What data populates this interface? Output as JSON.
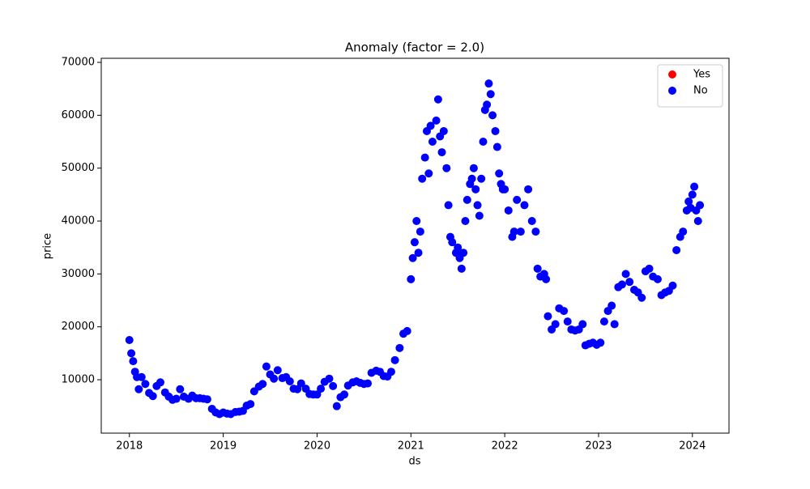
{
  "chart_data": {
    "type": "scatter",
    "title": "Anomaly (factor = 2.0)",
    "x_label": "ds",
    "y_label": "price",
    "xlim": [
      2017.7,
      2024.39
    ],
    "xticks": [
      2018,
      2019,
      2020,
      2021,
      2022,
      2023,
      2024
    ],
    "ylim": [
      -100,
      70770
    ],
    "yticks": [
      10000,
      20000,
      30000,
      40000,
      50000,
      60000,
      70000
    ],
    "legend": "upper right",
    "series": [
      {
        "name": "Yes",
        "color": "red",
        "x": [],
        "values": []
      },
      {
        "name": "No",
        "color": "blue",
        "x": [
          2018.0,
          2018.02,
          2018.04,
          2018.06,
          2018.08,
          2018.1,
          2018.13,
          2018.17,
          2018.21,
          2018.25,
          2018.29,
          2018.33,
          2018.38,
          2018.42,
          2018.46,
          2018.5,
          2018.54,
          2018.58,
          2018.63,
          2018.67,
          2018.71,
          2018.75,
          2018.79,
          2018.83,
          2018.88,
          2018.92,
          2018.96,
          2019.0,
          2019.04,
          2019.08,
          2019.13,
          2019.17,
          2019.21,
          2019.25,
          2019.29,
          2019.33,
          2019.38,
          2019.42,
          2019.46,
          2019.5,
          2019.54,
          2019.58,
          2019.63,
          2019.67,
          2019.71,
          2019.75,
          2019.79,
          2019.83,
          2019.88,
          2019.92,
          2019.96,
          2020.0,
          2020.04,
          2020.08,
          2020.13,
          2020.17,
          2020.21,
          2020.25,
          2020.29,
          2020.33,
          2020.38,
          2020.42,
          2020.46,
          2020.5,
          2020.54,
          2020.58,
          2020.63,
          2020.67,
          2020.71,
          2020.75,
          2020.79,
          2020.83,
          2020.88,
          2020.92,
          2020.96,
          2021.0,
          2021.02,
          2021.04,
          2021.06,
          2021.08,
          2021.1,
          2021.12,
          2021.15,
          2021.17,
          2021.19,
          2021.21,
          2021.23,
          2021.27,
          2021.29,
          2021.31,
          2021.33,
          2021.35,
          2021.38,
          2021.4,
          2021.42,
          2021.44,
          2021.48,
          2021.5,
          2021.52,
          2021.54,
          2021.56,
          2021.58,
          2021.6,
          2021.63,
          2021.65,
          2021.67,
          2021.69,
          2021.71,
          2021.73,
          2021.75,
          2021.77,
          2021.79,
          2021.81,
          2021.83,
          2021.85,
          2021.87,
          2021.9,
          2021.92,
          2021.94,
          2021.96,
          2021.98,
          2022.0,
          2022.04,
          2022.08,
          2022.1,
          2022.13,
          2022.17,
          2022.21,
          2022.25,
          2022.29,
          2022.33,
          2022.35,
          2022.38,
          2022.42,
          2022.44,
          2022.46,
          2022.5,
          2022.54,
          2022.58,
          2022.63,
          2022.67,
          2022.71,
          2022.75,
          2022.79,
          2022.83,
          2022.86,
          2022.9,
          2022.94,
          2022.98,
          2023.02,
          2023.06,
          2023.1,
          2023.14,
          2023.17,
          2023.21,
          2023.25,
          2023.29,
          2023.33,
          2023.38,
          2023.42,
          2023.46,
          2023.5,
          2023.54,
          2023.58,
          2023.63,
          2023.67,
          2023.71,
          2023.75,
          2023.79,
          2023.83,
          2023.87,
          2023.9,
          2023.94,
          2023.96,
          2023.98,
          2024.0,
          2024.02,
          2024.04,
          2024.06,
          2024.08
        ],
        "values": [
          17500,
          15000,
          13500,
          11500,
          10500,
          8200,
          10500,
          9200,
          7500,
          6900,
          8800,
          9500,
          7600,
          6800,
          6200,
          6400,
          8200,
          6800,
          6400,
          7000,
          6500,
          6500,
          6400,
          6300,
          4500,
          3800,
          3500,
          3800,
          3600,
          3500,
          3900,
          3950,
          4100,
          5100,
          5400,
          7800,
          8700,
          9200,
          12500,
          11000,
          10200,
          11800,
          10300,
          10500,
          9700,
          8300,
          8200,
          9300,
          8300,
          7300,
          7200,
          7200,
          8300,
          9600,
          10200,
          8800,
          5000,
          6700,
          7200,
          8900,
          9500,
          9700,
          9400,
          9200,
          9300,
          11300,
          11700,
          11500,
          10700,
          10600,
          11500,
          13700,
          16000,
          18700,
          19200,
          29000,
          33000,
          36000,
          40000,
          34000,
          38000,
          48000,
          52000,
          57000,
          49000,
          58000,
          55000,
          59000,
          63000,
          56000,
          53000,
          57000,
          50000,
          43000,
          37000,
          36000,
          34000,
          35000,
          33000,
          31000,
          34000,
          40000,
          44000,
          47000,
          48000,
          50000,
          46000,
          43000,
          41000,
          48000,
          55000,
          61000,
          62000,
          66000,
          64000,
          60000,
          57000,
          54000,
          49000,
          47000,
          46000,
          46000,
          42000,
          37000,
          38000,
          44000,
          38000,
          43000,
          46000,
          40000,
          38000,
          31000,
          29500,
          30000,
          29000,
          22000,
          19500,
          20500,
          23500,
          23000,
          21000,
          19500,
          19300,
          19500,
          20500,
          16500,
          16800,
          17000,
          16600,
          17000,
          21000,
          23000,
          24000,
          20500,
          27500,
          28000,
          30000,
          28500,
          27000,
          26500,
          25500,
          30500,
          31000,
          29500,
          29000,
          26000,
          26500,
          26800,
          27800,
          34500,
          37000,
          38000,
          42000,
          43700,
          42500,
          45000,
          46500,
          42000,
          40000,
          43000
        ]
      }
    ]
  }
}
